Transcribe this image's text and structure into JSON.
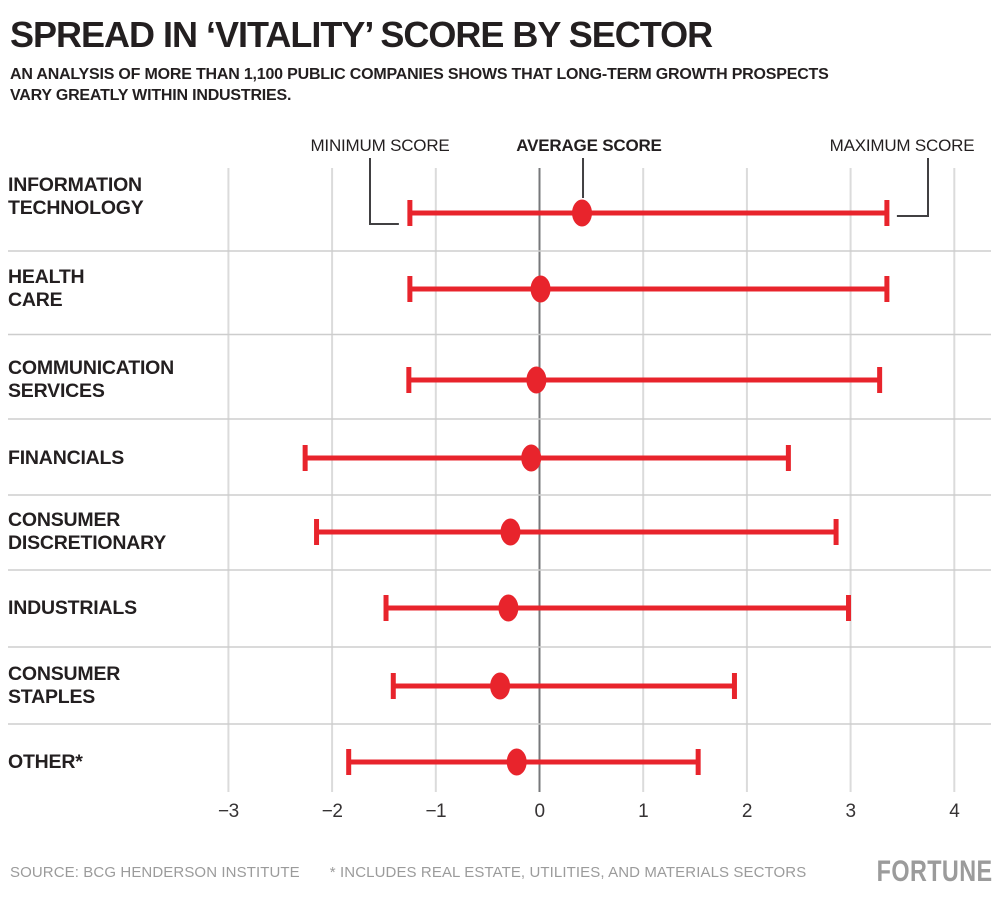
{
  "header": {
    "title": "SPREAD IN ‘VITALITY’ SCORE BY SECTOR",
    "subtitle_line1": "AN ANALYSIS OF MORE THAN 1,100 PUBLIC COMPANIES SHOWS THAT LONG-TERM GROWTH PROSPECTS",
    "subtitle_line2": "VARY GREATLY WITHIN INDUSTRIES."
  },
  "annotations": {
    "min_label": "MINIMUM SCORE",
    "avg_label": "AVERAGE SCORE",
    "max_label": "MAXIMUM SCORE"
  },
  "footer": {
    "source": "SOURCE: BCG HENDERSON INSTITUTE",
    "note": "* INCLUDES REAL ESTATE, UTILITIES, AND MATERIALS SECTORS",
    "brand": "FORTUNE"
  },
  "colors": {
    "accent_red": "#e8242c",
    "zero_line": "#77787b",
    "gridline": "#dbdbdb",
    "separator": "#cdcdcd",
    "leader": "#414042",
    "footer_gray": "#9b9b9b",
    "text_dark": "#231f20"
  },
  "chart_data": {
    "type": "range-dot",
    "title": "Spread in 'Vitality' score by sector",
    "xlabel": "",
    "ylabel": "",
    "x_axis": {
      "min": -3,
      "max": 4,
      "ticks": [
        -3,
        -2,
        -1,
        0,
        1,
        2,
        3,
        4
      ]
    },
    "grid": "vertical",
    "rows": [
      {
        "sector": "Information Technology",
        "label_lines": [
          "INFORMATION",
          "TECHNOLOGY"
        ],
        "min": -1.25,
        "avg": 0.41,
        "max": 3.35
      },
      {
        "sector": "Health Care",
        "label_lines": [
          "HEALTH",
          "CARE"
        ],
        "min": -1.25,
        "avg": 0.01,
        "max": 3.35
      },
      {
        "sector": "Communication Services",
        "label_lines": [
          "COMMUNICATION",
          "SERVICES"
        ],
        "min": -1.26,
        "avg": -0.03,
        "max": 3.28
      },
      {
        "sector": "Financials",
        "label_lines": [
          "FINANCIALS"
        ],
        "min": -2.26,
        "avg": -0.08,
        "max": 2.4
      },
      {
        "sector": "Consumer Discretionary",
        "label_lines": [
          "CONSUMER",
          "DISCRETIONARY"
        ],
        "min": -2.15,
        "avg": -0.28,
        "max": 2.86
      },
      {
        "sector": "Industrials",
        "label_lines": [
          "INDUSTRIALS"
        ],
        "min": -1.48,
        "avg": -0.3,
        "max": 2.98
      },
      {
        "sector": "Consumer Staples",
        "label_lines": [
          "CONSUMER",
          "STAPLES"
        ],
        "min": -1.41,
        "avg": -0.38,
        "max": 1.88
      },
      {
        "sector": "Other*",
        "label_lines": [
          "OTHER*"
        ],
        "min": -1.84,
        "avg": -0.22,
        "max": 1.53
      }
    ]
  }
}
